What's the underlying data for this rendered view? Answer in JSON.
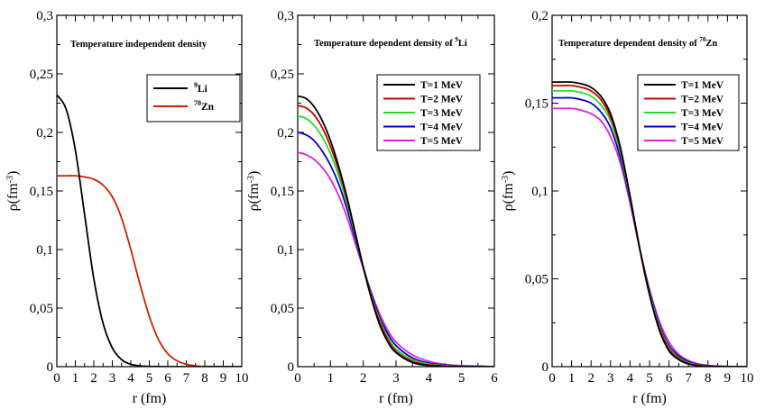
{
  "chart_data": [
    {
      "type": "line",
      "title": "Temperature independent density",
      "xlabel": "r (fm)",
      "ylabel": "ρ(fm",
      "ylabel_sup": "-3",
      "ylabel_end": ")",
      "xlim": [
        0,
        10
      ],
      "ylim": [
        0,
        0.3
      ],
      "xticks": [
        0,
        1,
        2,
        3,
        4,
        5,
        6,
        7,
        8,
        9,
        10
      ],
      "xtick_labels": [
        "0",
        "1",
        "2",
        "3",
        "4",
        "5",
        "6",
        "7",
        "8",
        "9",
        "10"
      ],
      "yticks": [
        0,
        0.05,
        0.1,
        0.15,
        0.2,
        0.25,
        0.3
      ],
      "ytick_labels": [
        "0",
        "0,05",
        "0,1",
        "0,15",
        "0,2",
        "0,25",
        "0,3"
      ],
      "legend_position": "top-right",
      "series": [
        {
          "name": "Li",
          "sup": "9",
          "color": "#000000",
          "x": [
            0,
            0.5,
            1,
            1.5,
            2,
            2.5,
            3,
            3.5,
            4,
            4.5,
            5,
            6,
            10
          ],
          "y": [
            0.232,
            0.22,
            0.185,
            0.13,
            0.075,
            0.037,
            0.016,
            0.006,
            0.002,
            0.0007,
            0.0002,
            0.0,
            0.0
          ]
        },
        {
          "name": "Zn",
          "sup": "70",
          "color": "#cc2200",
          "x": [
            0,
            0.5,
            1,
            1.5,
            2,
            2.5,
            3,
            3.5,
            4,
            4.5,
            5,
            5.5,
            6,
            6.5,
            7,
            7.5,
            8,
            10
          ],
          "y": [
            0.163,
            0.163,
            0.163,
            0.162,
            0.16,
            0.155,
            0.145,
            0.127,
            0.1,
            0.07,
            0.043,
            0.023,
            0.011,
            0.005,
            0.002,
            0.0007,
            0.0002,
            0.0
          ]
        }
      ]
    },
    {
      "type": "line",
      "title": "Temperature dependent density of ",
      "title_sup": "9",
      "title_end": "Li",
      "xlabel": "r (fm)",
      "ylabel": "ρ(fm",
      "ylabel_sup": "-3",
      "ylabel_end": ")",
      "xlim": [
        0,
        6
      ],
      "ylim": [
        0,
        0.3
      ],
      "xticks": [
        0,
        1,
        2,
        3,
        4,
        5,
        6
      ],
      "xtick_labels": [
        "0",
        "1",
        "2",
        "3",
        "4",
        "5",
        "6"
      ],
      "yticks": [
        0,
        0.05,
        0.1,
        0.15,
        0.2,
        0.25,
        0.3
      ],
      "ytick_labels": [
        "0",
        "0,05",
        "0,1",
        "0,15",
        "0,2",
        "0,25",
        "0,3"
      ],
      "legend_position": "top-right",
      "series": [
        {
          "name": "T=1 MeV",
          "color": "#000000",
          "x": [
            0,
            0.25,
            0.5,
            0.75,
            1,
            1.25,
            1.5,
            1.75,
            2,
            2.25,
            2.5,
            2.75,
            3,
            3.5,
            4,
            4.5,
            5,
            6
          ],
          "y": [
            0.231,
            0.229,
            0.222,
            0.21,
            0.193,
            0.171,
            0.145,
            0.115,
            0.085,
            0.058,
            0.036,
            0.021,
            0.012,
            0.0035,
            0.001,
            0.0003,
            0.0001,
            0.0
          ]
        },
        {
          "name": "T=2 MeV",
          "color": "#cc0000",
          "x": [
            0,
            0.25,
            0.5,
            0.75,
            1,
            1.25,
            1.5,
            1.75,
            2,
            2.25,
            2.5,
            2.75,
            3,
            3.5,
            4,
            4.5,
            5,
            6
          ],
          "y": [
            0.223,
            0.221,
            0.215,
            0.204,
            0.188,
            0.168,
            0.143,
            0.115,
            0.085,
            0.059,
            0.038,
            0.023,
            0.013,
            0.0045,
            0.0015,
            0.0005,
            0.0002,
            0.0
          ]
        },
        {
          "name": "T=3 MeV",
          "color": "#22dd22",
          "x": [
            0,
            0.25,
            0.5,
            0.75,
            1,
            1.25,
            1.5,
            1.75,
            2,
            2.25,
            2.5,
            2.75,
            3,
            3.5,
            4,
            4.5,
            5,
            6
          ],
          "y": [
            0.214,
            0.212,
            0.206,
            0.196,
            0.182,
            0.163,
            0.14,
            0.113,
            0.085,
            0.06,
            0.04,
            0.025,
            0.015,
            0.006,
            0.0022,
            0.0008,
            0.0003,
            0.0
          ]
        },
        {
          "name": "T=4 MeV",
          "color": "#0000cc",
          "x": [
            0,
            0.25,
            0.5,
            0.75,
            1,
            1.25,
            1.5,
            1.75,
            2,
            2.25,
            2.5,
            2.75,
            3,
            3.5,
            4,
            4.5,
            5,
            6
          ],
          "y": [
            0.2,
            0.198,
            0.193,
            0.184,
            0.172,
            0.156,
            0.135,
            0.11,
            0.085,
            0.062,
            0.042,
            0.028,
            0.018,
            0.0075,
            0.003,
            0.0012,
            0.0005,
            0.0
          ]
        },
        {
          "name": "T=5 MeV",
          "color": "#dd22dd",
          "x": [
            0,
            0.25,
            0.5,
            0.75,
            1,
            1.25,
            1.5,
            1.75,
            2,
            2.25,
            2.5,
            2.75,
            3,
            3.5,
            4,
            4.5,
            5,
            6
          ],
          "y": [
            0.183,
            0.181,
            0.177,
            0.17,
            0.16,
            0.146,
            0.128,
            0.106,
            0.084,
            0.063,
            0.045,
            0.031,
            0.021,
            0.01,
            0.0045,
            0.0019,
            0.0008,
            0.0001
          ]
        }
      ]
    },
    {
      "type": "line",
      "title": "Temperature dependent density of ",
      "title_sup": "70",
      "title_end": "Zn",
      "xlabel": "r (fm)",
      "ylabel": "ρ(fm",
      "ylabel_sup": "-3",
      "ylabel_end": ")",
      "xlim": [
        0,
        10
      ],
      "ylim": [
        0,
        0.2
      ],
      "xticks": [
        0,
        1,
        2,
        3,
        4,
        5,
        6,
        7,
        8,
        9,
        10
      ],
      "xtick_labels": [
        "0",
        "1",
        "2",
        "3",
        "4",
        "5",
        "6",
        "7",
        "8",
        "9",
        "10"
      ],
      "yticks": [
        0,
        0.05,
        0.1,
        0.15,
        0.2
      ],
      "ytick_labels": [
        "0",
        "0,05",
        "0,1",
        "0,15",
        "0,2"
      ],
      "legend_position": "top-right",
      "series": [
        {
          "name": "T=1 MeV",
          "color": "#000000",
          "x": [
            0,
            0.5,
            1,
            1.5,
            2,
            2.5,
            3,
            3.5,
            4,
            4.5,
            5,
            5.5,
            6,
            6.5,
            7,
            7.5,
            8,
            9,
            10
          ],
          "y": [
            0.162,
            0.162,
            0.162,
            0.161,
            0.159,
            0.154,
            0.144,
            0.125,
            0.097,
            0.067,
            0.041,
            0.021,
            0.009,
            0.004,
            0.0015,
            0.0005,
            0.0002,
            0.0,
            0.0
          ]
        },
        {
          "name": "T=2 MeV",
          "color": "#cc0000",
          "x": [
            0,
            0.5,
            1,
            1.5,
            2,
            2.5,
            3,
            3.5,
            4,
            4.5,
            5,
            5.5,
            6,
            6.5,
            7,
            7.5,
            8,
            9,
            10
          ],
          "y": [
            0.16,
            0.16,
            0.16,
            0.159,
            0.157,
            0.152,
            0.142,
            0.124,
            0.097,
            0.067,
            0.041,
            0.022,
            0.01,
            0.0045,
            0.0018,
            0.0007,
            0.0003,
            0.0,
            0.0
          ]
        },
        {
          "name": "T=3 MeV",
          "color": "#22dd22",
          "x": [
            0,
            0.5,
            1,
            1.5,
            2,
            2.5,
            3,
            3.5,
            4,
            4.5,
            5,
            5.5,
            6,
            6.5,
            7,
            7.5,
            8,
            9,
            10
          ],
          "y": [
            0.157,
            0.157,
            0.157,
            0.156,
            0.154,
            0.149,
            0.14,
            0.122,
            0.096,
            0.067,
            0.042,
            0.023,
            0.011,
            0.005,
            0.0022,
            0.0009,
            0.0004,
            0.0,
            0.0
          ]
        },
        {
          "name": "T=4 MeV",
          "color": "#0000cc",
          "x": [
            0,
            0.5,
            1,
            1.5,
            2,
            2.5,
            3,
            3.5,
            4,
            4.5,
            5,
            5.5,
            6,
            6.5,
            7,
            7.5,
            8,
            9,
            10
          ],
          "y": [
            0.153,
            0.153,
            0.153,
            0.152,
            0.15,
            0.145,
            0.136,
            0.119,
            0.095,
            0.067,
            0.043,
            0.024,
            0.012,
            0.006,
            0.0028,
            0.0012,
            0.0005,
            0.0001,
            0.0
          ]
        },
        {
          "name": "T=5 MeV",
          "color": "#dd22dd",
          "x": [
            0,
            0.5,
            1,
            1.5,
            2,
            2.5,
            3,
            3.5,
            4,
            4.5,
            5,
            5.5,
            6,
            6.5,
            7,
            7.5,
            8,
            9,
            10
          ],
          "y": [
            0.147,
            0.147,
            0.147,
            0.146,
            0.144,
            0.14,
            0.131,
            0.116,
            0.093,
            0.067,
            0.044,
            0.026,
            0.014,
            0.007,
            0.0035,
            0.0016,
            0.0007,
            0.0001,
            0.0
          ]
        }
      ]
    }
  ]
}
